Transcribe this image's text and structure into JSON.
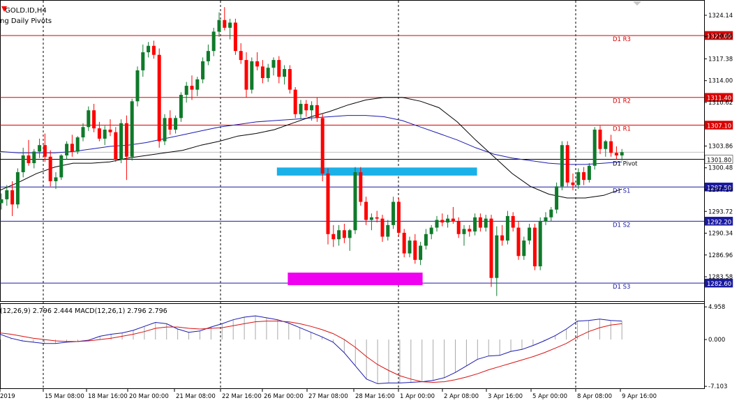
{
  "symbol_title": "GOLD.ID,H4",
  "indicator_title": "ng Daily Pivots",
  "macd_label": "(12,26,9) 2.796 2.444 MACD(12,26,1) 2.796 2.796",
  "colors": {
    "bull": "#0f7a2a",
    "bear": "#ff0000",
    "resistance_line": "#d90000",
    "support_line": "#1a1aa0",
    "pivot_line": "#000000",
    "ma_fast": "#000000",
    "ma_slow": "#1a1ab0",
    "zone_support": "#1ab0e8",
    "zone_low": "#f000f0",
    "macd_line": "#1a1ab0",
    "signal_line": "#d91010",
    "histogram": "#a8a8a8"
  },
  "chart_data": [
    {
      "type": "candlestick",
      "title": "GOLD.ID,H4",
      "ylim": [
        1279.8,
        1326.4
      ],
      "y_ticks": [
        1324.14,
        1320.86,
        1317.38,
        1314.0,
        1310.62,
        1303.86,
        1300.48,
        1297.1,
        1293.72,
        1290.34,
        1286.96,
        1283.58
      ],
      "x_ticks": [
        "2019",
        "15 Mar 08:00",
        "18 Mar 16:00",
        "20 Mar 00:00",
        "21 Mar 08:00",
        "22 Mar 16:00",
        "26 Mar 00:00",
        "27 Mar 08:00",
        "28 Mar 16:00",
        "1 Apr 00:00",
        "2 Apr 08:00",
        "3 Apr 16:00",
        "5 Apr 00:00",
        "8 Apr 08:00",
        "9 Apr 16:00"
      ],
      "vertical_grid_after_ticks": [
        "15 Mar 08:00",
        "22 Mar 16:00",
        "1 Apr 00:00",
        "8 Apr 08:00"
      ],
      "pivot_levels": [
        {
          "label": "D1 R3",
          "value": 1321.0,
          "price_label": "1321.00",
          "kind": "resistance"
        },
        {
          "label": "D1 R2",
          "value": 1311.4,
          "price_label": "1311.40",
          "kind": "resistance"
        },
        {
          "label": "D1 R1",
          "value": 1307.1,
          "price_label": "1307.10",
          "kind": "resistance"
        },
        {
          "label": "D1 Pivot",
          "value": 1301.8,
          "price_label": "1301.80",
          "kind": "pivot"
        },
        {
          "label": "D1 S1",
          "value": 1297.5,
          "price_label": "1297.50",
          "kind": "support"
        },
        {
          "label": "D1 S2",
          "value": 1292.2,
          "price_label": "1292.20",
          "kind": "support"
        },
        {
          "label": "D1 S3",
          "value": 1282.6,
          "price_label": "1282.60",
          "kind": "support"
        }
      ],
      "current_price": 1302.9,
      "zones": [
        {
          "name": "support-zone",
          "from_candle": 51,
          "to_candle": 87,
          "y_top": 1300.2,
          "y_bottom": 1299.6
        },
        {
          "name": "low-zone",
          "from_candle": 53,
          "to_candle": 77,
          "y_top": 1283.9,
          "y_bottom": 1282.6
        }
      ],
      "candles": [
        [
          1295.0,
          1296.5,
          1294.0,
          1295.6
        ],
        [
          1295.6,
          1297.8,
          1294.6,
          1297.0
        ],
        [
          1297.0,
          1298.4,
          1293.0,
          1294.8
        ],
        [
          1294.8,
          1300.4,
          1294.2,
          1299.8
        ],
        [
          1299.8,
          1303.6,
          1299.0,
          1302.4
        ],
        [
          1302.4,
          1304.8,
          1300.8,
          1301.2
        ],
        [
          1301.2,
          1303.4,
          1300.4,
          1303.0
        ],
        [
          1303.0,
          1305.0,
          1302.0,
          1304.0
        ],
        [
          1304.0,
          1305.8,
          1301.4,
          1302.2
        ],
        [
          1302.2,
          1303.2,
          1297.6,
          1298.4
        ],
        [
          1298.4,
          1299.8,
          1297.2,
          1299.0
        ],
        [
          1299.0,
          1302.6,
          1298.6,
          1302.4
        ],
        [
          1302.4,
          1304.6,
          1301.8,
          1304.2
        ],
        [
          1304.2,
          1305.6,
          1302.2,
          1303.0
        ],
        [
          1303.0,
          1305.4,
          1302.6,
          1305.2
        ],
        [
          1305.2,
          1307.4,
          1304.6,
          1306.8
        ],
        [
          1306.8,
          1310.0,
          1306.2,
          1309.4
        ],
        [
          1309.4,
          1310.4,
          1306.0,
          1306.6
        ],
        [
          1306.6,
          1307.6,
          1304.6,
          1305.0
        ],
        [
          1305.0,
          1307.0,
          1304.0,
          1306.4
        ],
        [
          1306.4,
          1308.0,
          1305.4,
          1306.0
        ],
        [
          1306.0,
          1306.8,
          1301.4,
          1301.8
        ],
        [
          1301.8,
          1308.0,
          1301.2,
          1307.4
        ],
        [
          1307.4,
          1308.6,
          1298.6,
          1302.2
        ],
        [
          1302.2,
          1311.2,
          1301.6,
          1310.8
        ],
        [
          1310.8,
          1316.2,
          1310.0,
          1315.6
        ],
        [
          1315.6,
          1319.6,
          1314.6,
          1318.4
        ],
        [
          1318.4,
          1320.0,
          1317.6,
          1319.4
        ],
        [
          1319.4,
          1320.2,
          1317.4,
          1318.0
        ],
        [
          1318.0,
          1319.0,
          1303.6,
          1304.6
        ],
        [
          1304.6,
          1308.8,
          1304.0,
          1308.2
        ],
        [
          1308.2,
          1309.4,
          1305.6,
          1306.4
        ],
        [
          1306.4,
          1308.6,
          1305.8,
          1308.2
        ],
        [
          1308.2,
          1312.2,
          1307.6,
          1311.8
        ],
        [
          1311.8,
          1313.8,
          1310.6,
          1313.2
        ],
        [
          1313.2,
          1314.8,
          1311.0,
          1312.6
        ],
        [
          1312.6,
          1314.6,
          1311.6,
          1314.2
        ],
        [
          1314.2,
          1317.6,
          1313.6,
          1317.0
        ],
        [
          1317.0,
          1319.6,
          1316.4,
          1318.6
        ],
        [
          1318.6,
          1322.2,
          1317.8,
          1321.6
        ],
        [
          1321.6,
          1324.6,
          1320.8,
          1323.4
        ],
        [
          1323.4,
          1325.4,
          1321.8,
          1322.2
        ],
        [
          1322.2,
          1323.6,
          1320.4,
          1323.0
        ],
        [
          1323.0,
          1323.6,
          1318.0,
          1318.6
        ],
        [
          1318.6,
          1319.8,
          1316.6,
          1317.2
        ],
        [
          1317.2,
          1318.4,
          1311.4,
          1312.6
        ],
        [
          1312.6,
          1317.6,
          1312.0,
          1317.0
        ],
        [
          1317.0,
          1318.4,
          1315.6,
          1316.2
        ],
        [
          1316.2,
          1317.2,
          1313.6,
          1314.4
        ],
        [
          1314.4,
          1316.6,
          1313.8,
          1316.0
        ],
        [
          1316.0,
          1317.6,
          1314.8,
          1317.2
        ],
        [
          1317.2,
          1317.8,
          1313.6,
          1314.6
        ],
        [
          1314.6,
          1316.4,
          1313.4,
          1315.8
        ],
        [
          1315.8,
          1316.4,
          1312.0,
          1312.6
        ],
        [
          1312.6,
          1313.0,
          1308.2,
          1308.8
        ],
        [
          1308.8,
          1311.0,
          1308.0,
          1310.4
        ],
        [
          1310.4,
          1311.0,
          1308.4,
          1309.4
        ],
        [
          1309.4,
          1310.8,
          1307.8,
          1310.2
        ],
        [
          1310.2,
          1311.4,
          1307.6,
          1308.2
        ],
        [
          1308.2,
          1308.8,
          1298.4,
          1299.6
        ],
        [
          1299.6,
          1300.4,
          1288.6,
          1290.2
        ],
        [
          1290.2,
          1291.6,
          1288.2,
          1289.4
        ],
        [
          1289.4,
          1291.6,
          1288.4,
          1290.8
        ],
        [
          1290.8,
          1291.8,
          1288.8,
          1289.6
        ],
        [
          1289.6,
          1291.0,
          1287.6,
          1290.8
        ],
        [
          1290.8,
          1300.6,
          1290.2,
          1299.8
        ],
        [
          1299.8,
          1300.6,
          1294.6,
          1295.2
        ],
        [
          1295.2,
          1296.0,
          1291.6,
          1292.4
        ],
        [
          1292.4,
          1293.4,
          1290.8,
          1292.8
        ],
        [
          1292.8,
          1293.8,
          1292.0,
          1292.6
        ],
        [
          1292.6,
          1293.2,
          1289.0,
          1289.8
        ],
        [
          1289.8,
          1292.4,
          1289.2,
          1291.6
        ],
        [
          1291.6,
          1296.0,
          1291.0,
          1295.2
        ],
        [
          1295.2,
          1295.8,
          1289.8,
          1290.4
        ],
        [
          1290.4,
          1291.0,
          1286.6,
          1287.2
        ],
        [
          1287.2,
          1289.8,
          1286.6,
          1289.2
        ],
        [
          1289.2,
          1290.2,
          1285.6,
          1286.2
        ],
        [
          1286.2,
          1289.0,
          1285.4,
          1288.4
        ],
        [
          1288.4,
          1291.0,
          1287.8,
          1290.2
        ],
        [
          1290.2,
          1291.6,
          1289.4,
          1291.2
        ],
        [
          1291.2,
          1293.0,
          1290.6,
          1292.4
        ],
        [
          1292.4,
          1293.4,
          1291.4,
          1292.0
        ],
        [
          1292.0,
          1293.2,
          1291.2,
          1292.6
        ],
        [
          1292.6,
          1294.4,
          1291.8,
          1292.2
        ],
        [
          1292.2,
          1292.8,
          1289.6,
          1290.2
        ],
        [
          1290.2,
          1291.6,
          1288.4,
          1291.0
        ],
        [
          1291.0,
          1291.6,
          1289.8,
          1290.6
        ],
        [
          1290.6,
          1293.4,
          1290.0,
          1292.8
        ],
        [
          1292.8,
          1293.4,
          1290.6,
          1291.2
        ],
        [
          1291.2,
          1293.2,
          1290.6,
          1292.6
        ],
        [
          1292.6,
          1293.2,
          1282.0,
          1283.4
        ],
        [
          1283.4,
          1291.4,
          1280.6,
          1290.0
        ],
        [
          1290.0,
          1291.6,
          1288.4,
          1289.2
        ],
        [
          1289.2,
          1293.8,
          1288.6,
          1293.0
        ],
        [
          1293.0,
          1293.6,
          1290.6,
          1291.2
        ],
        [
          1291.2,
          1292.2,
          1286.2,
          1286.8
        ],
        [
          1286.8,
          1289.8,
          1286.2,
          1289.2
        ],
        [
          1289.2,
          1291.8,
          1288.6,
          1291.2
        ],
        [
          1291.2,
          1291.8,
          1284.6,
          1285.2
        ],
        [
          1285.2,
          1292.8,
          1284.6,
          1292.2
        ],
        [
          1292.2,
          1293.6,
          1291.6,
          1292.8
        ],
        [
          1292.8,
          1294.4,
          1292.2,
          1294.0
        ],
        [
          1294.0,
          1298.2,
          1293.4,
          1297.6
        ],
        [
          1297.6,
          1304.6,
          1297.0,
          1304.0
        ],
        [
          1304.0,
          1304.6,
          1297.6,
          1298.2
        ],
        [
          1298.2,
          1299.6,
          1297.0,
          1297.8
        ],
        [
          1297.8,
          1300.4,
          1297.2,
          1299.8
        ],
        [
          1299.8,
          1300.6,
          1297.8,
          1298.6
        ],
        [
          1298.6,
          1301.2,
          1298.2,
          1300.8
        ],
        [
          1300.8,
          1306.8,
          1300.2,
          1306.4
        ],
        [
          1306.4,
          1307.0,
          1302.6,
          1303.4
        ],
        [
          1303.4,
          1304.8,
          1302.2,
          1304.6
        ],
        [
          1304.6,
          1305.6,
          1302.2,
          1302.8
        ],
        [
          1302.8,
          1303.8,
          1301.8,
          1302.4
        ],
        [
          1302.4,
          1303.4,
          1301.6,
          1302.9
        ]
      ],
      "ma_fast": [
        1297.0,
        1298.2,
        1299.6,
        1300.6,
        1301.2,
        1301.2,
        1301.4,
        1302.0,
        1302.4,
        1302.8,
        1303.2,
        1304.0,
        1304.6,
        1305.4,
        1305.8,
        1306.4,
        1307.4,
        1308.4,
        1309.2,
        1310.2,
        1311.0,
        1311.4,
        1311.4,
        1310.8,
        1309.8,
        1307.6,
        1304.8,
        1302.2,
        1299.6,
        1297.6,
        1296.4,
        1295.8,
        1295.8,
        1296.2,
        1297.2
      ],
      "ma_slow": [
        1303.0,
        1302.8,
        1302.8,
        1302.8,
        1303.0,
        1303.4,
        1303.8,
        1304.0,
        1304.4,
        1305.0,
        1305.6,
        1306.2,
        1306.8,
        1307.2,
        1307.6,
        1307.8,
        1308.0,
        1308.2,
        1308.4,
        1308.6,
        1308.6,
        1308.4,
        1307.8,
        1306.8,
        1305.8,
        1304.8,
        1303.6,
        1302.6,
        1302.0,
        1301.6,
        1301.2,
        1301.0,
        1301.0,
        1301.2,
        1301.4
      ]
    },
    {
      "type": "line",
      "title": "MACD(12,26,9)",
      "ylim": [
        -7.4,
        5.3
      ],
      "y_ticks": [
        4.958,
        0.0,
        -7.103
      ],
      "macd": [
        0.8,
        0.2,
        -0.2,
        -0.4,
        -0.6,
        -0.6,
        -0.4,
        -0.3,
        -0.1,
        0.5,
        0.8,
        1.0,
        1.4,
        2.0,
        2.6,
        2.4,
        1.6,
        1.1,
        1.3,
        1.9,
        2.4,
        3.0,
        3.4,
        3.6,
        3.3,
        3.0,
        2.5,
        1.8,
        1.1,
        0.4,
        -0.4,
        -2.0,
        -4.0,
        -6.0,
        -6.7,
        -6.6,
        -6.6,
        -6.5,
        -6.4,
        -6.2,
        -5.8,
        -5.0,
        -4.0,
        -3.0,
        -2.5,
        -2.4,
        -1.8,
        -1.5,
        -0.9,
        -0.2,
        0.6,
        1.6,
        2.8,
        2.9,
        3.1,
        2.9,
        2.8
      ],
      "signal": [
        1.0,
        0.8,
        0.5,
        0.2,
        0.0,
        -0.2,
        -0.3,
        -0.3,
        -0.2,
        0.0,
        0.2,
        0.5,
        0.8,
        1.2,
        1.7,
        1.9,
        1.9,
        1.7,
        1.6,
        1.7,
        1.8,
        2.1,
        2.4,
        2.7,
        2.8,
        2.8,
        2.7,
        2.4,
        2.0,
        1.5,
        0.9,
        0.0,
        -1.2,
        -2.6,
        -3.8,
        -4.7,
        -5.5,
        -6.0,
        -6.4,
        -6.5,
        -6.4,
        -6.1,
        -5.7,
        -5.2,
        -4.6,
        -4.1,
        -3.6,
        -3.1,
        -2.6,
        -2.0,
        -1.3,
        -0.6,
        0.4,
        1.2,
        1.8,
        2.2,
        2.4
      ]
    }
  ]
}
